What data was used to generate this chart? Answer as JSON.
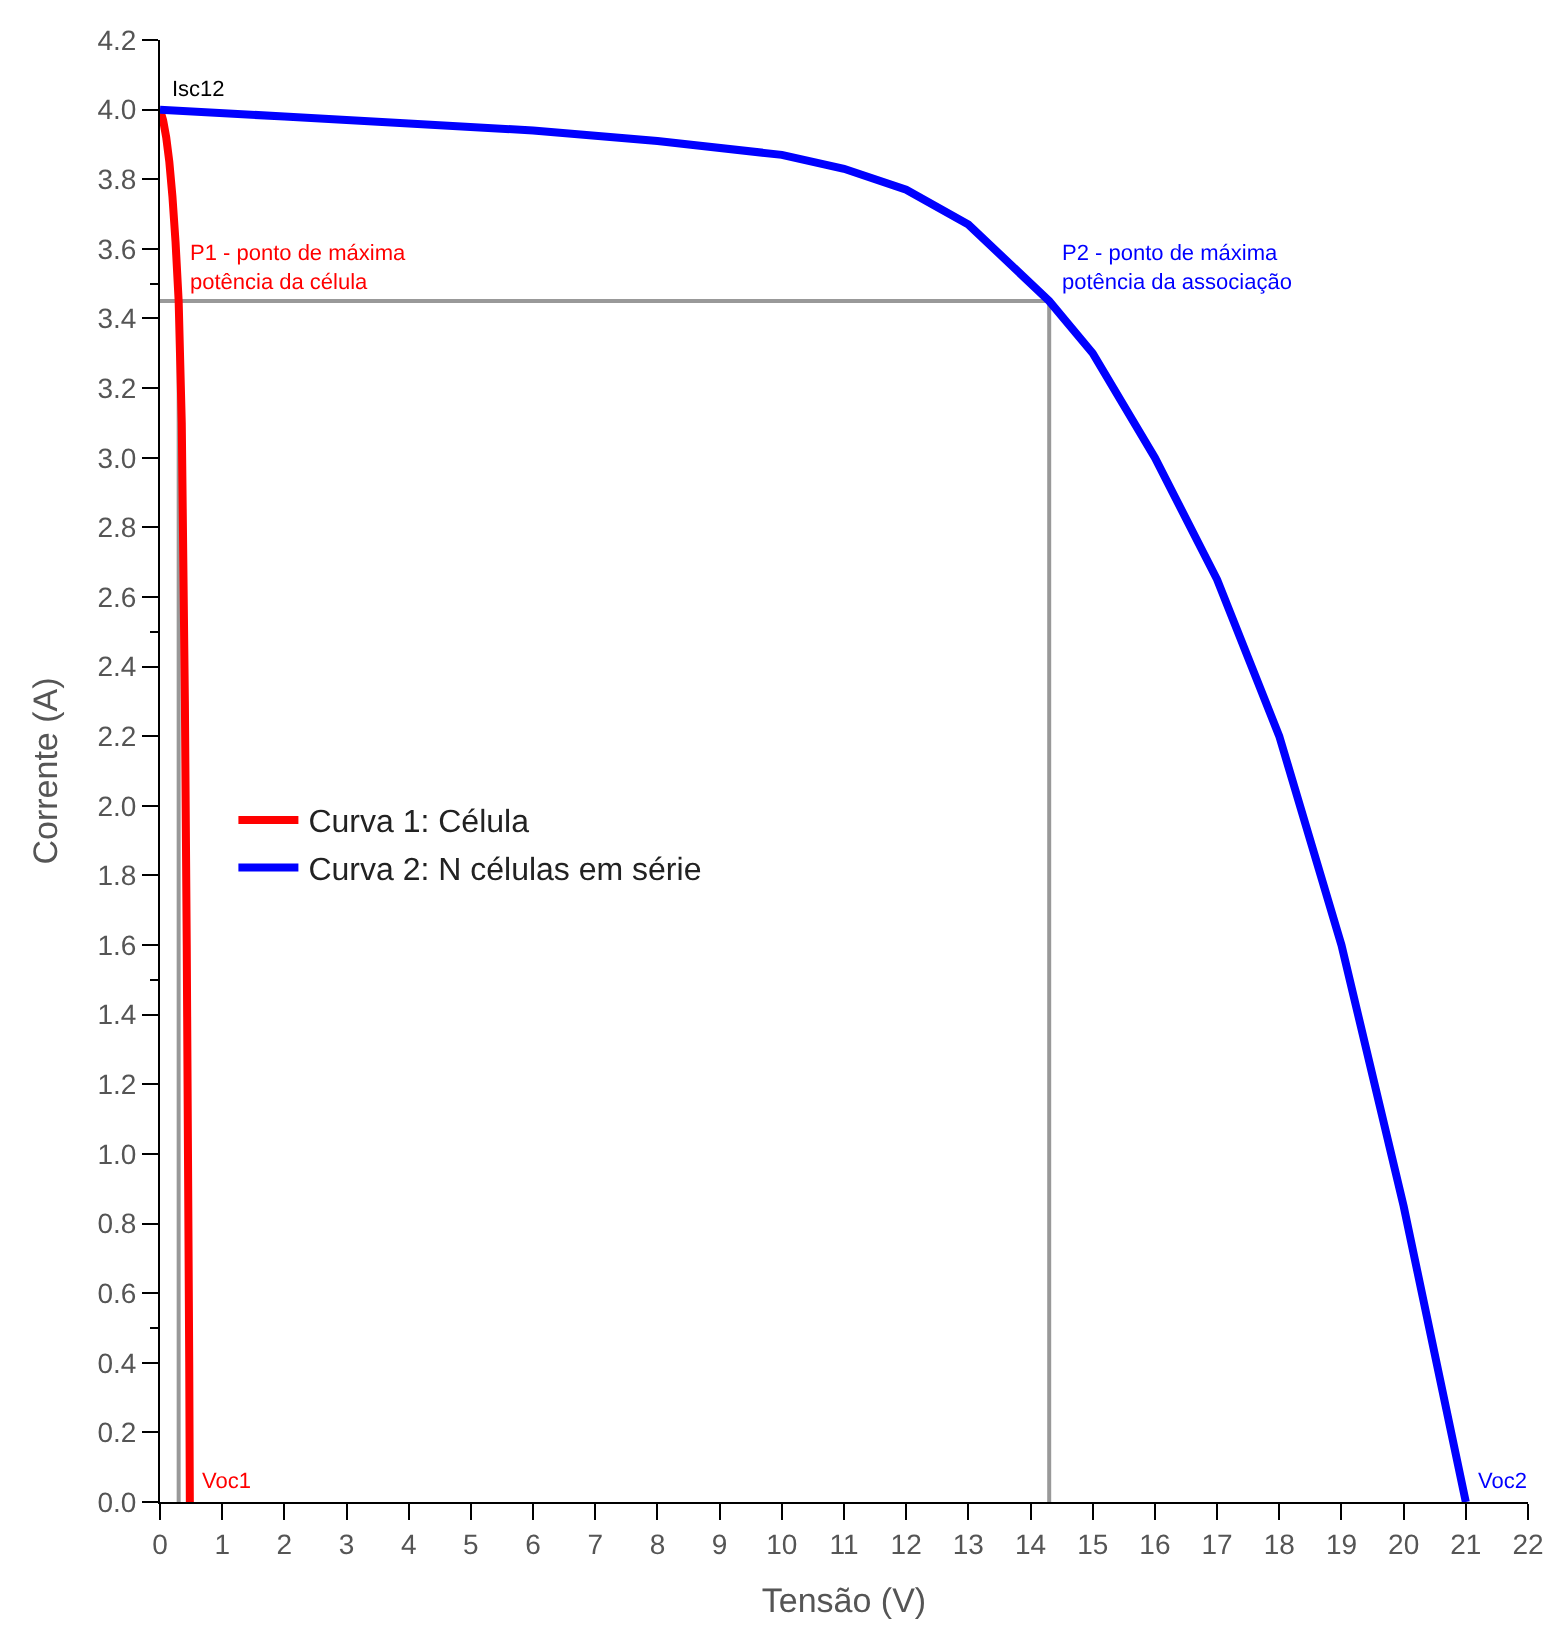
{
  "chart_data": {
    "type": "line",
    "xlabel": "Tensão (V)",
    "ylabel": "Corrente (A)",
    "series": [
      {
        "name": "Curva 1: Célula",
        "color": "#ff0000",
        "x": [
          0,
          0.05,
          0.1,
          0.15,
          0.2,
          0.25,
          0.3,
          0.35,
          0.4,
          0.43,
          0.45,
          0.47,
          0.48
        ],
        "values": [
          4.0,
          3.97,
          3.92,
          3.85,
          3.75,
          3.62,
          3.45,
          3.1,
          2.3,
          1.6,
          1.0,
          0.4,
          0.0
        ]
      },
      {
        "name": "Curva 2: N células em série",
        "color": "#0000ff",
        "x": [
          0,
          2,
          4,
          6,
          8,
          10,
          11,
          12,
          13,
          14.3,
          15,
          16,
          17,
          18,
          19,
          20,
          21
        ],
        "values": [
          4.0,
          3.98,
          3.96,
          3.94,
          3.91,
          3.87,
          3.83,
          3.77,
          3.67,
          3.45,
          3.3,
          3.0,
          2.65,
          2.2,
          1.6,
          0.85,
          0.0
        ]
      }
    ],
    "annotations": [
      {
        "text": "Isc12",
        "x": 0,
        "y": 4.0
      },
      {
        "text": "P1 - ponto de máxima\npotência da célula",
        "x": 0.3,
        "y": 3.45
      },
      {
        "text": "P2 - ponto de máxima\npotência da associação",
        "x": 14.3,
        "y": 3.45
      },
      {
        "text": "Voc1",
        "x": 0.48,
        "y": 0
      },
      {
        "text": "Voc2",
        "x": 21,
        "y": 0
      }
    ],
    "ref_lines": [
      {
        "axis": "y",
        "value": 3.45,
        "color": "#999999"
      },
      {
        "axis": "x",
        "value": 14.3,
        "color": "#999999"
      },
      {
        "axis": "x",
        "value": 0.3,
        "color": "#999999"
      }
    ],
    "xlim": [
      0,
      22
    ],
    "ylim": [
      0,
      4.2
    ],
    "xticks": [
      0,
      1,
      2,
      3,
      4,
      5,
      6,
      7,
      8,
      9,
      10,
      11,
      12,
      13,
      14,
      15,
      16,
      17,
      18,
      19,
      20,
      21,
      22
    ],
    "yticks": [
      {
        "value": 0,
        "label": "0.0"
      },
      {
        "value": 0.2,
        "label": "0.2"
      },
      {
        "value": 0.4,
        "label": "0.4"
      },
      {
        "value": 0.6,
        "label": "0.6"
      },
      {
        "value": 0.8,
        "label": "0.8"
      },
      {
        "value": 1.0,
        "label": "1.0"
      },
      {
        "value": 1.2,
        "label": "1.2"
      },
      {
        "value": 1.4,
        "label": "1.4"
      },
      {
        "value": 1.6,
        "label": "1.6"
      },
      {
        "value": 1.8,
        "label": "1.8"
      },
      {
        "value": 2.0,
        "label": "2.0"
      },
      {
        "value": 2.2,
        "label": "2.2"
      },
      {
        "value": 2.4,
        "label": "2.4"
      },
      {
        "value": 2.6,
        "label": "2.6"
      },
      {
        "value": 2.8,
        "label": "2.8"
      },
      {
        "value": 3.0,
        "label": "3.0"
      },
      {
        "value": 3.2,
        "label": "3.2"
      },
      {
        "value": 3.4,
        "label": "3.4"
      },
      {
        "value": 3.6,
        "label": "3.6"
      },
      {
        "value": 3.8,
        "label": "3.8"
      },
      {
        "value": 4.0,
        "label": "4.0"
      },
      {
        "value": 4.2,
        "label": "4.2"
      }
    ],
    "grid": false,
    "legend": "left",
    "marker": "none",
    "line_style": "solid"
  }
}
